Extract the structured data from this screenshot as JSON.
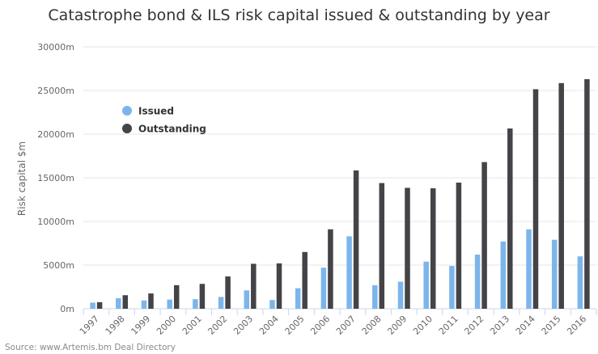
{
  "chart_data": {
    "type": "bar",
    "title": "Catastrophe bond & ILS risk capital issued & outstanding by year",
    "xlabel": "",
    "ylabel": "Risk capital $m",
    "ylim": [
      0,
      30000
    ],
    "yticks": [
      "0m",
      "5000m",
      "10000m",
      "15000m",
      "20000m",
      "25000m",
      "30000m"
    ],
    "categories": [
      "1997",
      "1998",
      "1999",
      "2000",
      "2001",
      "2002",
      "2003",
      "2004",
      "2005",
      "2006",
      "2007",
      "2008",
      "2009",
      "2010",
      "2011",
      "2012",
      "2013",
      "2014",
      "2015",
      "2016"
    ],
    "series": [
      {
        "name": "Issued",
        "color": "#7cb5ec",
        "values": [
          700,
          1200,
          950,
          1050,
          1100,
          1350,
          2100,
          1000,
          2350,
          4700,
          8300,
          2700,
          3100,
          5400,
          4900,
          6200,
          7700,
          9100,
          7900,
          6000
        ]
      },
      {
        "name": "Outstanding",
        "color": "#434348",
        "values": [
          750,
          1550,
          1750,
          2700,
          2850,
          3700,
          5150,
          5200,
          6500,
          9100,
          15850,
          14400,
          13850,
          13800,
          14450,
          16800,
          20650,
          25150,
          25850,
          26300
        ]
      }
    ],
    "grid": true,
    "legend_placement": "top-left"
  },
  "source": "Source: www.Artemis.bm Deal Directory"
}
